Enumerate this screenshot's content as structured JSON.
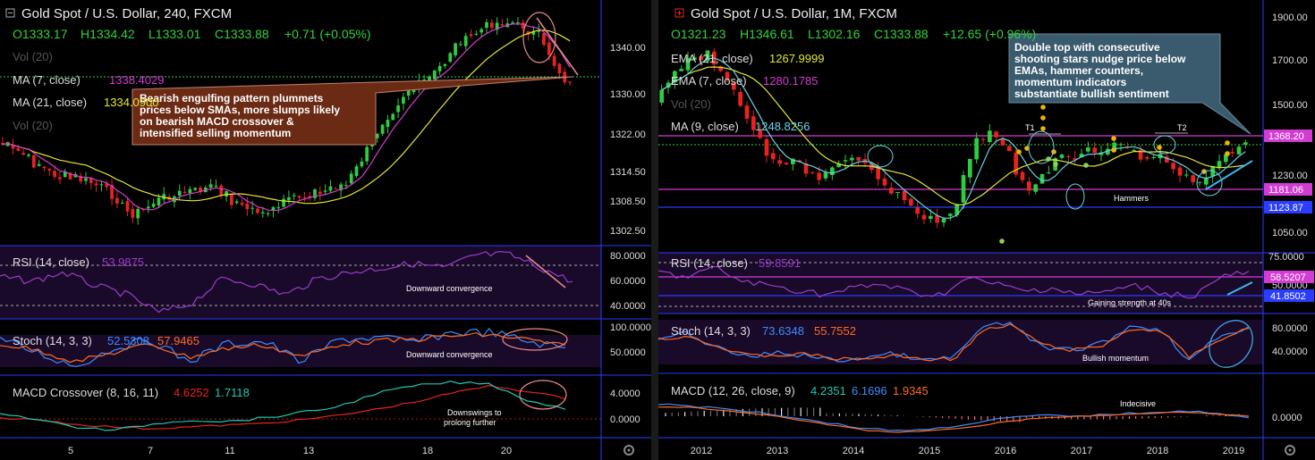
{
  "left": {
    "title": "Gold Spot / U.S. Dollar, 240, FXCM",
    "ohlc": {
      "o": "O1333.17",
      "h": "H1334.42",
      "l": "L1333.01",
      "c": "C1333.88",
      "chg": "+0.71 (+0.05%)"
    },
    "vol_label": "Vol (20)",
    "vol_label2": "Vol (20)",
    "ma7_label": "MA (7, close)",
    "ma7_val": "1338.4029",
    "ma21_label": "MA (21, close)",
    "ma21_val": "1334.0900",
    "callout": [
      "Bearish engulfing pattern plummets",
      "prices below SMAs, more slumps likely",
      "on bearish MACD crossover &",
      "intensified selling momentum"
    ],
    "price_axis": [
      "1340.00",
      "1330.00",
      "1322.00",
      "1314.50",
      "1308.50",
      "1302.50"
    ],
    "rsi_label": "RSI (14, close)",
    "rsi_val": "53.9875",
    "rsi_axis": [
      "80.0000",
      "60.0000",
      "40.0000"
    ],
    "rsi_note": "Downward convergence",
    "stoch_label": "Stoch (14, 3, 3)",
    "stoch_k": "52.5308",
    "stoch_d": "57.9465",
    "stoch_axis": [
      "100.0000",
      "50.0000"
    ],
    "stoch_note": "Downward convergence",
    "macd_label": "MACD Crossover (8, 16, 11)",
    "macd_v1": "4.6252",
    "macd_v2": "1.7118",
    "macd_axis": [
      "4.0000",
      "0.0000"
    ],
    "macd_note": [
      "Downswings to",
      "prolong further"
    ],
    "x_axis": [
      "5",
      "7",
      "11",
      "13",
      "18",
      "20"
    ]
  },
  "right": {
    "title": "Gold Spot / U.S. Dollar, 1M, FXCM",
    "ohlc": {
      "o": "O1321.23",
      "h": "H1346.61",
      "l": "L1302.16",
      "c": "C1333.88",
      "chg": "+12.65 (+0.96%)"
    },
    "ema21_label": "EMA (21, close)",
    "ema21_val": "1267.9999",
    "ema7_label": "EMA (7, close)",
    "ema7_val": "1280.1785",
    "vol_label": "Vol (20)",
    "ma9_label": "MA (9, close)",
    "ma9_val": "1248.8256",
    "callout": [
      "Double top with consecutive",
      "shooting stars nudge price below",
      "EMAs, hammer counters,",
      "momentum indicators",
      "substantiate bullish sentiment"
    ],
    "t1": "T1",
    "t2": "T2",
    "hammers": "Hammers",
    "price_axis": [
      "1900.00",
      "1700.00",
      "1500.00",
      "1230.00",
      "1050.00"
    ],
    "price_tags": {
      "p1": "1368.20",
      "p2": "1181.06",
      "p3": "1123.87"
    },
    "rsi_label": "RSI (14, close)",
    "rsi_val": "59.8591",
    "rsi_axis": [
      "75.0000"
    ],
    "rsi_tags": {
      "a": "58.5207",
      "b": "41.8502"
    },
    "rsi_partial": "50.0000",
    "rsi_note": "Gaining strength at 40s",
    "stoch_label": "Stoch (14, 3, 3)",
    "stoch_k": "73.6348",
    "stoch_d": "55.7552",
    "stoch_axis": [
      "80.0000",
      "40.0000"
    ],
    "stoch_note": "Bullish momentum",
    "macd_label": "MACD (12, 26, close, 9)",
    "macd_v1": "4.2351",
    "macd_v2": "6.1696",
    "macd_v3": "1.9345",
    "macd_axis": [
      "0.0000"
    ],
    "macd_note": "Indecisive",
    "x_axis": [
      "2012",
      "2013",
      "2014",
      "2015",
      "2016",
      "2017",
      "2018",
      "2019"
    ]
  },
  "colors": {
    "up": "#2ecc40",
    "down": "#e8231f",
    "ma_fast": "#d23cd2",
    "ma_slow": "#e6e632",
    "panel_line": "#2a3cff",
    "ind_bg": "#1a0a2a",
    "callout_left": "#6b2a14",
    "callout_right": "#3a5a6e"
  }
}
